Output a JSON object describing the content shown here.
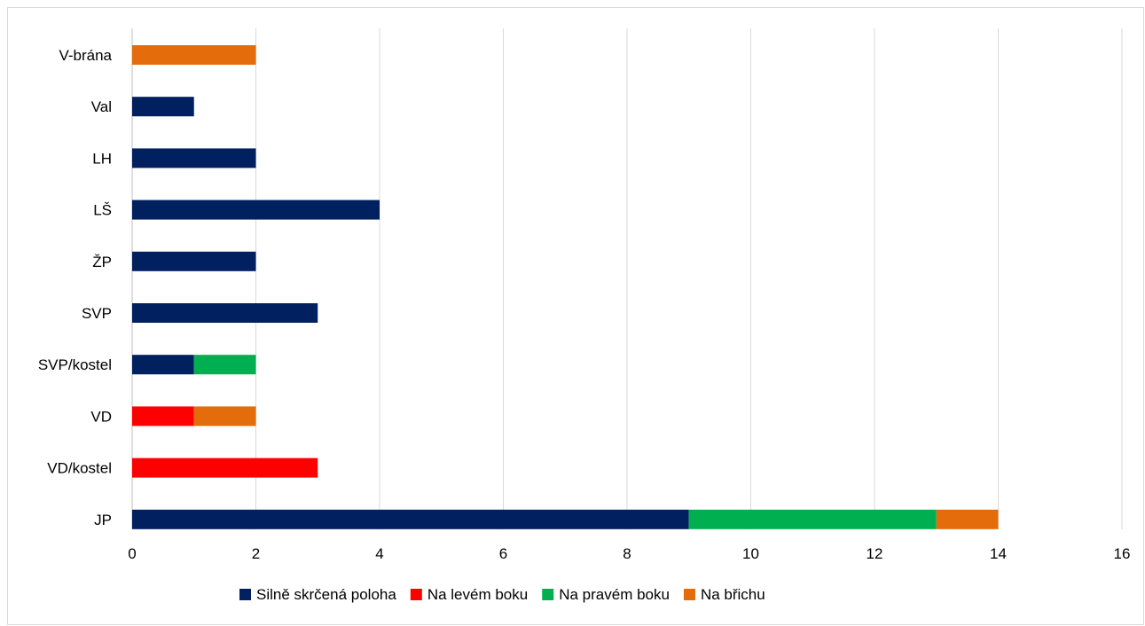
{
  "chart_data": {
    "type": "bar",
    "orientation": "horizontal",
    "stacked": true,
    "categories": [
      "V-brána",
      "Val",
      "LH",
      "LŠ",
      "ŽP",
      "SVP",
      "SVP/kostel",
      "VD",
      "VD/kostel",
      "JP"
    ],
    "series": [
      {
        "name": "Silně skrčená poloha",
        "color": "#002060",
        "values": [
          0,
          1,
          2,
          4,
          2,
          3,
          1,
          0,
          0,
          9
        ]
      },
      {
        "name": "Na levém boku",
        "color": "#ff0000",
        "values": [
          0,
          0,
          0,
          0,
          0,
          0,
          0,
          1,
          3,
          0
        ]
      },
      {
        "name": "Na pravém boku",
        "color": "#00b050",
        "values": [
          0,
          0,
          0,
          0,
          0,
          0,
          1,
          0,
          0,
          4
        ]
      },
      {
        "name": "Na břichu",
        "color": "#e46c0a",
        "values": [
          2,
          0,
          0,
          0,
          0,
          0,
          0,
          1,
          0,
          1
        ]
      }
    ],
    "xlim": [
      0,
      16
    ],
    "xticks": [
      "0",
      "2",
      "4",
      "6",
      "8",
      "10",
      "12",
      "14",
      "16"
    ],
    "grid": "vertical",
    "legend_position": "bottom"
  }
}
